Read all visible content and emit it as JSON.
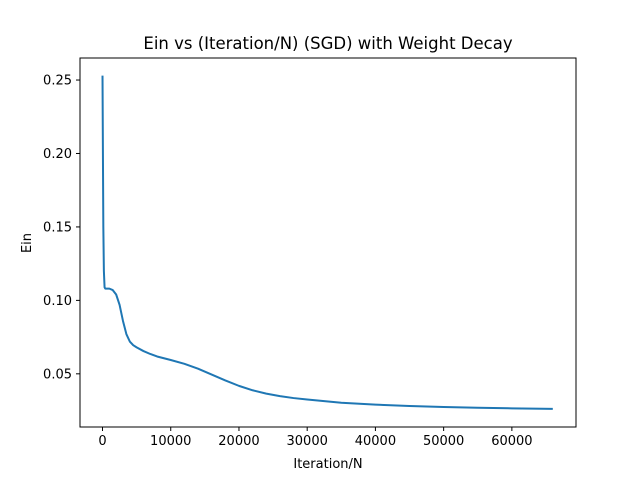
{
  "chart_data": {
    "type": "line",
    "title": "Ein vs (Iteration/N) (SGD) with Weight Decay",
    "xlabel": "Iteration/N",
    "ylabel": "Ein",
    "xlim": [
      -3300,
      69400
    ],
    "ylim": [
      0.0138,
      0.265
    ],
    "xticks": [
      0,
      10000,
      20000,
      30000,
      40000,
      50000,
      60000
    ],
    "yticks": [
      0.05,
      0.1,
      0.15,
      0.2,
      0.25
    ],
    "ytick_labels": [
      "0.05",
      "0.10",
      "0.15",
      "0.20",
      "0.25"
    ],
    "grid": false,
    "series": [
      {
        "color": "#1f77b4",
        "x": [
          0,
          60,
          120,
          200,
          300,
          400,
          600,
          1000,
          1500,
          2000,
          2500,
          3000,
          3500,
          4000,
          4500,
          5000,
          6000,
          7000,
          8000,
          10000,
          12000,
          14000,
          16000,
          18000,
          20000,
          22000,
          24000,
          26000,
          28000,
          30000,
          35000,
          40000,
          45000,
          50000,
          55000,
          60000,
          66000
        ],
        "y": [
          0.253,
          0.2,
          0.15,
          0.12,
          0.109,
          0.108,
          0.108,
          0.108,
          0.107,
          0.104,
          0.097,
          0.086,
          0.077,
          0.072,
          0.0695,
          0.068,
          0.0655,
          0.0635,
          0.0618,
          0.0594,
          0.0568,
          0.0535,
          0.0495,
          0.0455,
          0.0418,
          0.0388,
          0.0365,
          0.0348,
          0.0335,
          0.0325,
          0.0303,
          0.029,
          0.0281,
          0.0274,
          0.0269,
          0.0265,
          0.0261
        ]
      }
    ]
  }
}
